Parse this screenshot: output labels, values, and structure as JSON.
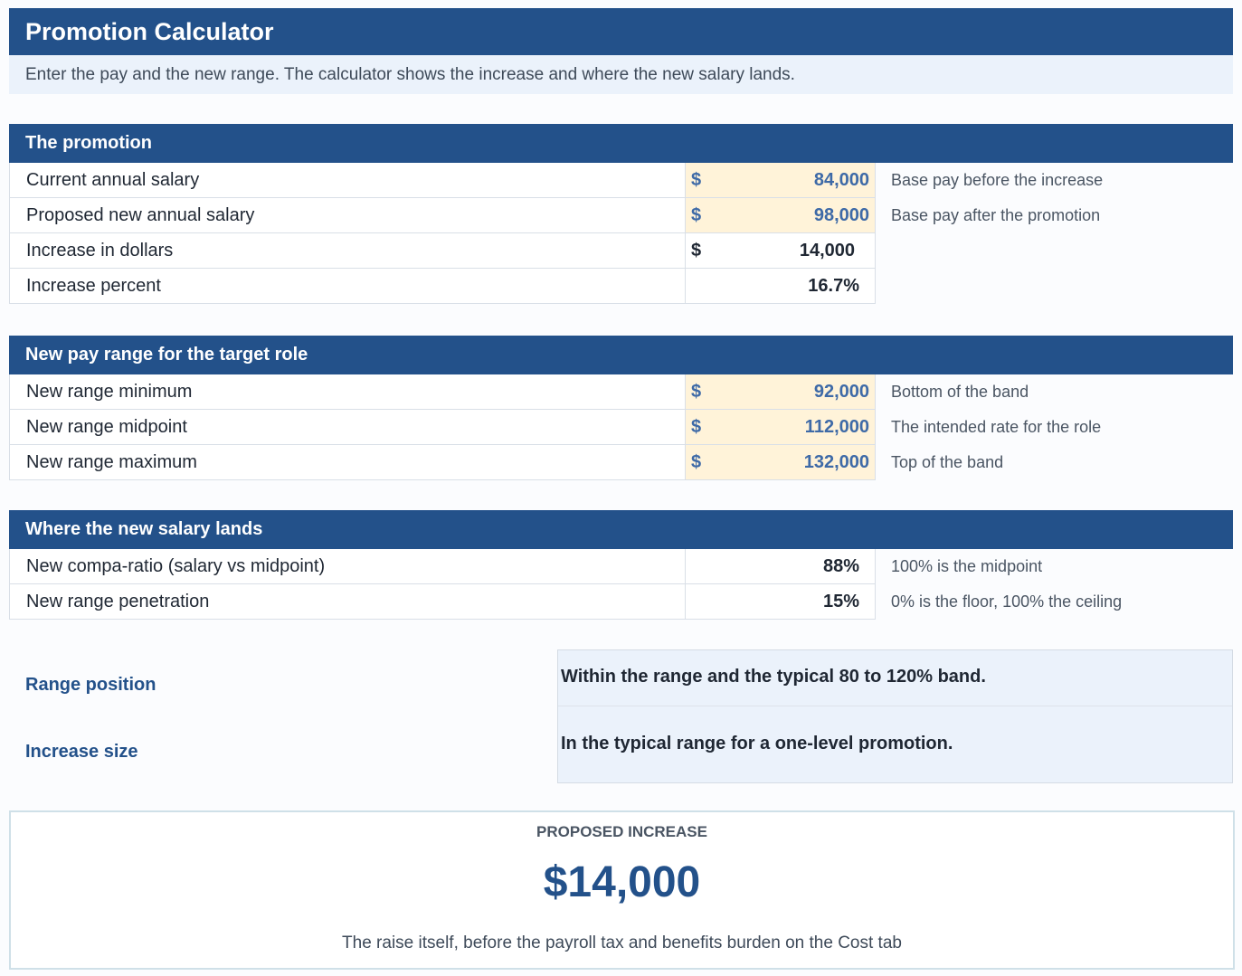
{
  "title": "Promotion Calculator",
  "subtitle": "Enter the pay and the new range. The calculator shows the increase and where the new salary lands.",
  "sections": {
    "promotion": {
      "header": "The promotion",
      "rows": [
        {
          "label": "Current annual salary",
          "currency": "$",
          "value": "84,000",
          "note": "Base pay before the increase"
        },
        {
          "label": "Proposed new annual salary",
          "currency": "$",
          "value": "98,000",
          "note": "Base pay after the promotion"
        },
        {
          "label": "Increase in dollars",
          "currency": "$",
          "value": "14,000",
          "note": ""
        },
        {
          "label": "Increase percent",
          "currency": "",
          "value": "16.7%",
          "note": ""
        }
      ]
    },
    "range": {
      "header": "New pay range for the target role",
      "rows": [
        {
          "label": "New range minimum",
          "currency": "$",
          "value": "92,000",
          "note": "Bottom of the band"
        },
        {
          "label": "New range midpoint",
          "currency": "$",
          "value": "112,000",
          "note": "The intended rate for the role"
        },
        {
          "label": "New range maximum",
          "currency": "$",
          "value": "132,000",
          "note": "Top of the band"
        }
      ]
    },
    "lands": {
      "header": "Where the new salary lands",
      "rows": [
        {
          "label": "New compa-ratio (salary vs midpoint)",
          "value": "88%",
          "note": "100% is the midpoint"
        },
        {
          "label": "New range penetration",
          "value": "15%",
          "note": "0% is the floor, 100% the ceiling"
        }
      ]
    }
  },
  "assessment": {
    "range_position_label": "Range position",
    "range_position_text": "Within the range and the typical 80 to 120% band.",
    "increase_size_label": "Increase size",
    "increase_size_text": "In the typical range for a one-level promotion."
  },
  "summary": {
    "kicker": "PROPOSED INCREASE",
    "amount": "$14,000",
    "caption": "The raise itself, before the payroll tax and benefits burden on the Cost tab"
  },
  "colors": {
    "header_blue": "#23518a",
    "input_fill": "#fff3d9",
    "input_text": "#3e6aa7",
    "subtitle_fill": "#ebf2fb"
  }
}
